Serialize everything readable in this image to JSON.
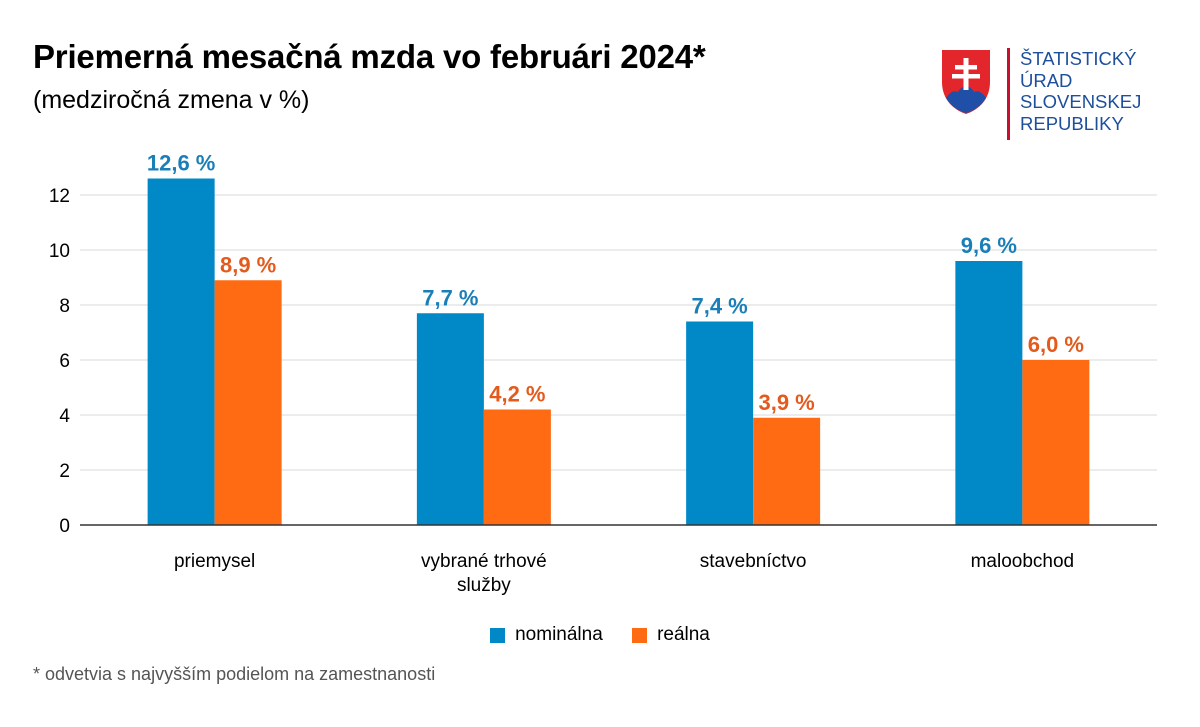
{
  "header": {
    "title": "Priemerná mesačná mzda vo februári 2024*",
    "subtitle": "(medziročná zmena v %)"
  },
  "logo": {
    "lines": [
      "ŠTATISTICKÝ",
      "ÚRAD",
      "SLOVENSKEJ",
      "REPUBLIKY"
    ],
    "emblem_icon": "slovak-coat-of-arms-icon",
    "text_color": "#1d4f9c",
    "accent_color": "#c8102e"
  },
  "chart_data": {
    "type": "bar",
    "title": "Priemerná mesačná mzda vo februári 2024*",
    "subtitle": "(medziročná zmena v %)",
    "categories": [
      [
        "priemysel"
      ],
      [
        "vybrané trhové",
        "služby"
      ],
      [
        "stavebníctvo"
      ],
      [
        "maloobchod"
      ]
    ],
    "series": [
      {
        "name": "nominálna",
        "color": "#0088c7",
        "values": [
          12.6,
          7.7,
          7.4,
          9.6
        ],
        "labels": [
          "12,6 %",
          "7,7 %",
          "7,4 %",
          "9,6 %"
        ]
      },
      {
        "name": "reálna",
        "color": "#ff6b12",
        "values": [
          8.9,
          4.2,
          3.9,
          6.0
        ],
        "labels": [
          "8,9 %",
          "4,2 %",
          "3,9 %",
          "6,0 %"
        ]
      }
    ],
    "ylim": [
      0,
      12.6
    ],
    "yticks": [
      0,
      2,
      4,
      6,
      8,
      10,
      12
    ],
    "grid": true,
    "legend_position": "bottom-center",
    "label_colors": {
      "nominálna": "#1a7fb8",
      "reálna": "#e35a1c"
    }
  },
  "legend": {
    "items": [
      {
        "label": "nominálna",
        "color": "#0088c7"
      },
      {
        "label": "reálna",
        "color": "#ff6b12"
      }
    ]
  },
  "footnote": "* odvetvia s najvyšším podielom na zamestnanosti"
}
